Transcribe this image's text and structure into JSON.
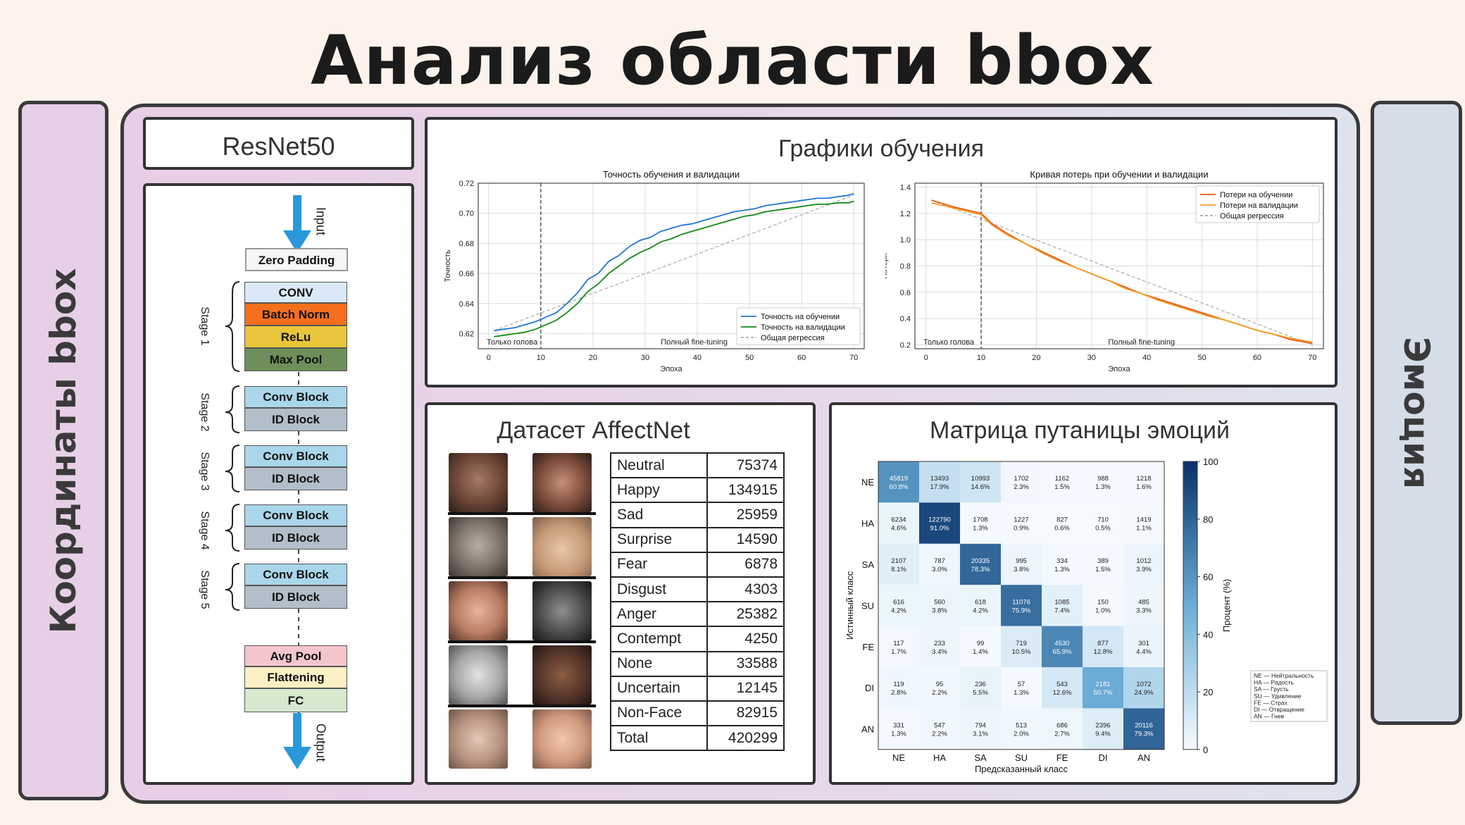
{
  "title": "Анализ области bbox",
  "left_label": "Координаты bbox",
  "right_label": "Эмоция",
  "resnet": {
    "title": "ResNet50",
    "input": "Input",
    "output": "Output",
    "zero_padding": "Zero  Padding",
    "stage1": {
      "label": "Stage 1",
      "blocks": [
        "CONV",
        "Batch Norm",
        "ReLu",
        "Max Pool"
      ]
    },
    "stages": [
      {
        "label": "Stage 2",
        "blocks": [
          "Conv Block",
          "ID Block"
        ]
      },
      {
        "label": "Stage 3",
        "blocks": [
          "Conv Block",
          "ID Block"
        ]
      },
      {
        "label": "Stage 4",
        "blocks": [
          "Conv Block",
          "ID Block"
        ]
      },
      {
        "label": "Stage 5",
        "blocks": [
          "Conv Block",
          "ID Block"
        ]
      }
    ],
    "head_blocks": [
      "Avg Pool",
      "Flattening",
      "FC"
    ]
  },
  "colors": {
    "conv": "#dbe8f8",
    "bn": "#f46f1e",
    "relu": "#e8c53a",
    "maxpool": "#6f8f5a",
    "convblock": "#a9d6ea",
    "idblock": "#b2bec9",
    "avgpool": "#f5c5cc",
    "flatten": "#fdf0c5",
    "fc": "#d6e9cf",
    "train": "#1f77d4",
    "val": "#138a13",
    "loss_train": "#e8541e",
    "loss_val": "#f0a020"
  },
  "training": {
    "section_title": "Графики обучения",
    "acc_chart": {
      "title": "Точность обучения и валидации",
      "xlabel": "Эпоха",
      "ylabel": "Точность",
      "xticks": [
        "0",
        "10",
        "20",
        "30",
        "40",
        "50",
        "60",
        "70"
      ],
      "yticks": [
        "0.62",
        "0.64",
        "0.66",
        "0.68",
        "0.70",
        "0.72"
      ],
      "legend": [
        "Точность на обучении",
        "Точность на валидации",
        "Общая регрессия"
      ],
      "ann_left": "Только голова",
      "ann_right": "Полный fine-tuning"
    },
    "loss_chart": {
      "title": "Кривая потерь при обучении и валидации",
      "xlabel": "Эпоха",
      "ylabel": "Потери",
      "xticks": [
        "0",
        "10",
        "20",
        "30",
        "40",
        "50",
        "60",
        "70"
      ],
      "yticks": [
        "0.2",
        "0.4",
        "0.6",
        "0.8",
        "1.0",
        "1.2",
        "1.4"
      ],
      "legend": [
        "Потери на обучении",
        "Потери на валидации",
        "Общая регрессия"
      ],
      "ann_left": "Только голова",
      "ann_right": "Полный fine-tuning"
    }
  },
  "chart_data": [
    {
      "type": "line",
      "title": "Точность обучения и валидации",
      "xlabel": "Эпоха",
      "ylabel": "Точность",
      "xlim": [
        -2,
        72
      ],
      "ylim": [
        0.61,
        0.72
      ],
      "grid": true,
      "legend_position": "bottom-right",
      "vline_x": 10,
      "x": [
        1,
        3,
        5,
        7,
        9,
        11,
        13,
        15,
        17,
        19,
        21,
        23,
        25,
        27,
        29,
        31,
        33,
        35,
        37,
        39,
        41,
        43,
        45,
        47,
        49,
        51,
        53,
        55,
        57,
        59,
        61,
        63,
        65,
        67,
        69,
        70
      ],
      "series": [
        {
          "name": "Точность на обучении",
          "values": [
            0.622,
            0.623,
            0.624,
            0.626,
            0.628,
            0.631,
            0.634,
            0.64,
            0.647,
            0.656,
            0.66,
            0.668,
            0.672,
            0.678,
            0.682,
            0.684,
            0.688,
            0.69,
            0.692,
            0.693,
            0.695,
            0.697,
            0.699,
            0.701,
            0.702,
            0.703,
            0.705,
            0.706,
            0.707,
            0.708,
            0.709,
            0.71,
            0.71,
            0.711,
            0.712,
            0.713
          ]
        },
        {
          "name": "Точность на валидации",
          "values": [
            0.618,
            0.619,
            0.62,
            0.621,
            0.623,
            0.626,
            0.629,
            0.634,
            0.64,
            0.648,
            0.653,
            0.66,
            0.665,
            0.67,
            0.674,
            0.677,
            0.681,
            0.683,
            0.686,
            0.688,
            0.69,
            0.692,
            0.694,
            0.696,
            0.698,
            0.699,
            0.701,
            0.702,
            0.703,
            0.704,
            0.705,
            0.706,
            0.706,
            0.707,
            0.707,
            0.708
          ]
        }
      ]
    },
    {
      "type": "line",
      "title": "Кривая потерь при обучении и валидации",
      "xlabel": "Эпоха",
      "ylabel": "Потери",
      "xlim": [
        -2,
        72
      ],
      "ylim": [
        0.17,
        1.43
      ],
      "grid": true,
      "legend_position": "top-right",
      "vline_x": 10,
      "x": [
        1,
        5,
        10,
        12,
        15,
        18,
        21,
        24,
        27,
        30,
        33,
        36,
        39,
        42,
        45,
        48,
        51,
        54,
        57,
        60,
        63,
        66,
        70
      ],
      "series": [
        {
          "name": "Потери на обучении",
          "values": [
            1.3,
            1.25,
            1.2,
            1.12,
            1.04,
            0.97,
            0.91,
            0.85,
            0.79,
            0.74,
            0.69,
            0.64,
            0.59,
            0.55,
            0.51,
            0.47,
            0.43,
            0.39,
            0.35,
            0.31,
            0.28,
            0.24,
            0.21
          ]
        },
        {
          "name": "Потери на валидации",
          "values": [
            1.28,
            1.24,
            1.19,
            1.11,
            1.03,
            0.97,
            0.9,
            0.84,
            0.79,
            0.74,
            0.69,
            0.63,
            0.59,
            0.54,
            0.5,
            0.46,
            0.42,
            0.39,
            0.35,
            0.31,
            0.28,
            0.25,
            0.22
          ]
        }
      ]
    },
    {
      "type": "heatmap",
      "title": "Матрица путаницы эмоций",
      "xlabel": "Предсказанный класс",
      "ylabel": "Истинный класс",
      "colorbar_label": "Процент (%)",
      "colorbar_ticks": [
        "0",
        "20",
        "40",
        "60",
        "80",
        "100"
      ],
      "labels": [
        "NE",
        "HA",
        "SA",
        "SU",
        "FE",
        "DI",
        "AN"
      ],
      "counts": [
        [
          "45819",
          "13493",
          "10993",
          "1702",
          "1162",
          "988",
          "1218"
        ],
        [
          "6234",
          "122790",
          "1708",
          "1227",
          "827",
          "710",
          "1419"
        ],
        [
          "2107",
          "787",
          "20335",
          "995",
          "334",
          "389",
          "1012"
        ],
        [
          "616",
          "560",
          "618",
          "11076",
          "1085",
          "150",
          "485"
        ],
        [
          "117",
          "233",
          "99",
          "719",
          "4530",
          "877",
          "301"
        ],
        [
          "119",
          "95",
          "236",
          "57",
          "543",
          "2181",
          "1072"
        ],
        [
          "331",
          "547",
          "794",
          "513",
          "686",
          "2396",
          "20116"
        ]
      ],
      "percents": [
        [
          "60.8%",
          "17.9%",
          "14.6%",
          "2.3%",
          "1.5%",
          "1.3%",
          "1.6%"
        ],
        [
          "4.6%",
          "91.0%",
          "1.3%",
          "0.9%",
          "0.6%",
          "0.5%",
          "1.1%"
        ],
        [
          "8.1%",
          "3.0%",
          "78.3%",
          "3.8%",
          "1.3%",
          "1.5%",
          "3.9%"
        ],
        [
          "4.2%",
          "3.8%",
          "4.2%",
          "75.9%",
          "7.4%",
          "1.0%",
          "3.3%"
        ],
        [
          "1.7%",
          "3.4%",
          "1.4%",
          "10.5%",
          "65.9%",
          "12.8%",
          "4.4%"
        ],
        [
          "2.8%",
          "2.2%",
          "5.5%",
          "1.3%",
          "12.6%",
          "50.7%",
          "24.9%"
        ],
        [
          "1.3%",
          "2.2%",
          "3.1%",
          "2.0%",
          "2.7%",
          "9.4%",
          "79.3%"
        ]
      ],
      "legend": [
        "NE — Нейтральность",
        "HA — Радость",
        "SA — Грусть",
        "SU — Удивление",
        "FE — Страх",
        "DI — Отвращение",
        "AN — Гнев"
      ]
    }
  ],
  "dataset": {
    "title": "Датасет AffectNet",
    "rows": [
      {
        "label": "Neutral",
        "value": "75374"
      },
      {
        "label": "Happy",
        "value": "134915"
      },
      {
        "label": "Sad",
        "value": "25959"
      },
      {
        "label": "Surprise",
        "value": "14590"
      },
      {
        "label": "Fear",
        "value": "6878"
      },
      {
        "label": "Disgust",
        "value": "4303"
      },
      {
        "label": "Anger",
        "value": "25382"
      },
      {
        "label": "Contempt",
        "value": "4250"
      },
      {
        "label": "None",
        "value": "33588"
      },
      {
        "label": "Uncertain",
        "value": "12145"
      },
      {
        "label": "Non-Face",
        "value": "82915"
      },
      {
        "label": "Total",
        "value": "420299"
      }
    ]
  }
}
